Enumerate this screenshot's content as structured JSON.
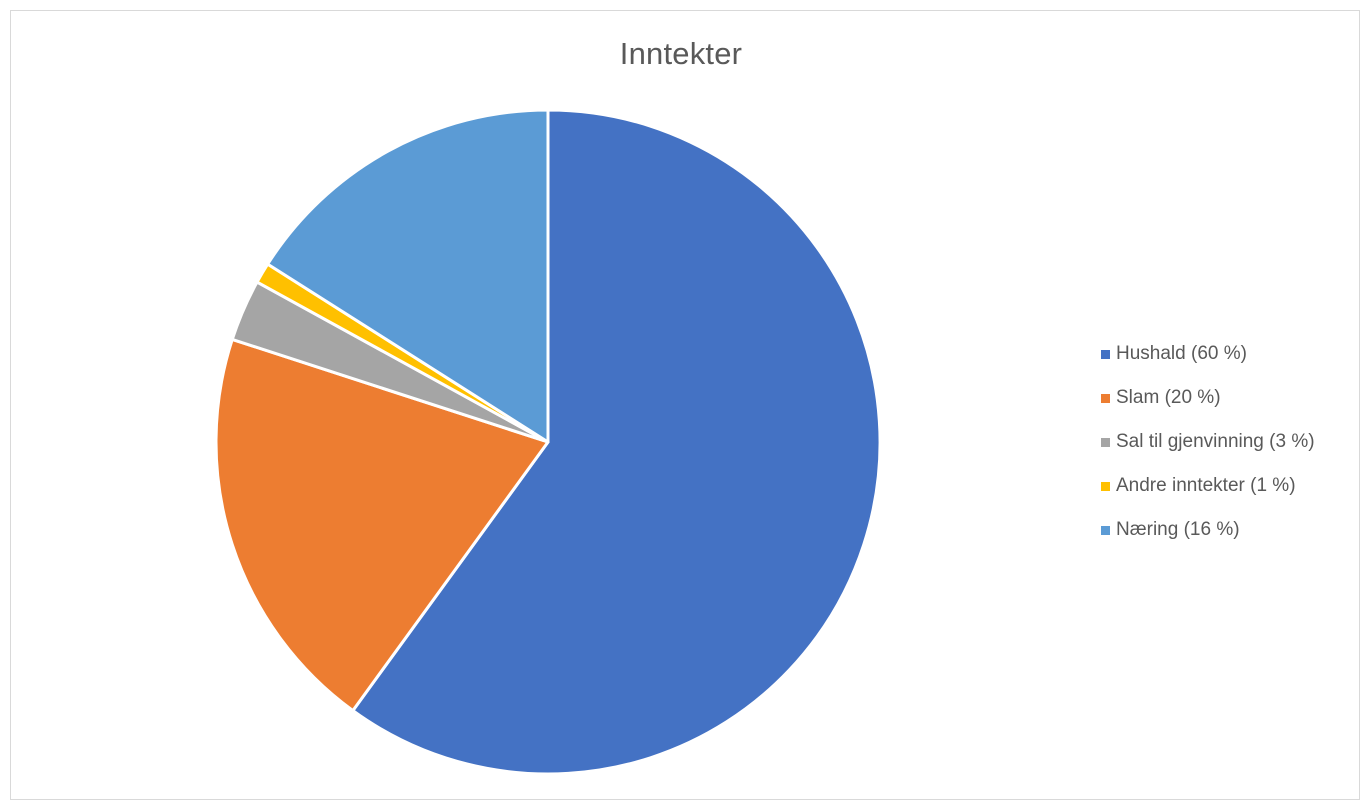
{
  "chart_data": {
    "type": "pie",
    "title": "Inntekter",
    "series": [
      {
        "categories": [
          "Hushald (60 %)",
          "Slam (20 %)",
          "Sal til gjenvinning (3 %)",
          "Andre inntekter (1 %)",
          "Næring (16 %)"
        ],
        "values": [
          60,
          20,
          3,
          1,
          16
        ],
        "colors": [
          "#4472C4",
          "#ED7D31",
          "#A5A5A5",
          "#FFC000",
          "#5B9BD5"
        ]
      }
    ],
    "start_angle": "12 o'clock",
    "direction": "clockwise",
    "legend": {
      "position": "right",
      "items": [
        {
          "label": "Hushald (60 %)",
          "color": "#4472C4"
        },
        {
          "label": "Slam (20 %)",
          "color": "#ED7D31"
        },
        {
          "label": "Sal til gjenvinning (3 %)",
          "color": "#A5A5A5"
        },
        {
          "label": "Andre inntekter (1 %)",
          "color": "#FFC000"
        },
        {
          "label": "Næring (16 %)",
          "color": "#5B9BD5"
        }
      ]
    }
  }
}
